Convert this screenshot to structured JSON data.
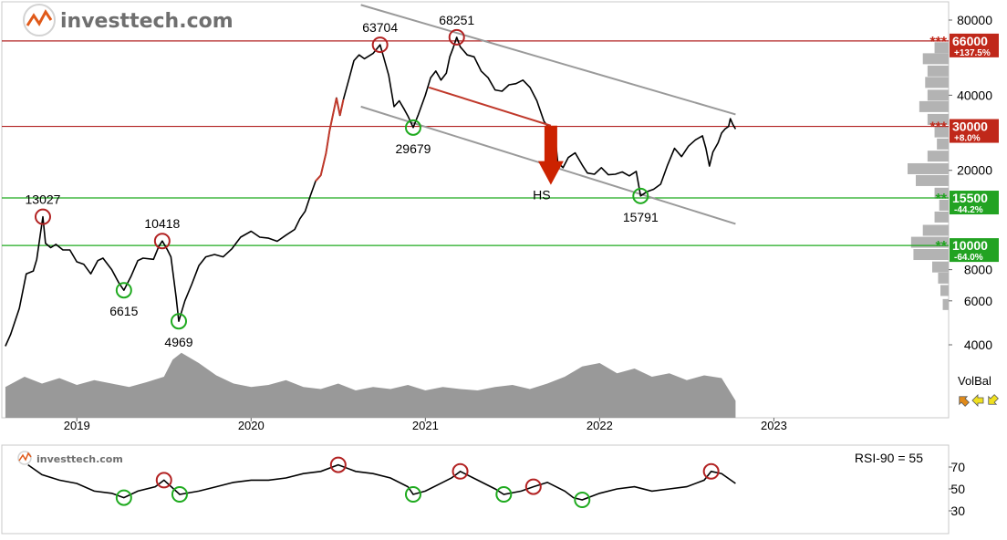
{
  "brand": {
    "name": "investtech.com",
    "small_name": "investtech.com"
  },
  "colors": {
    "price_line": "#000000",
    "breakout_red": "#c0392b",
    "resistance_red": "#b22222",
    "support_green": "#1faa1f",
    "channel_gray": "#9a9a9a",
    "volume_gray": "#999999",
    "histogram_gray": "#b3b3b3",
    "label_red_bg": "#c0281a",
    "label_green_bg": "#22a322",
    "arrow_red": "#cc2200"
  },
  "chart_data": [
    {
      "type": "line",
      "y_scale": "log",
      "ylim": [
        4000,
        90000
      ],
      "y_ticks": [
        {
          "value": 80000,
          "label": "80000"
        },
        {
          "value": 40000,
          "label": "40000"
        },
        {
          "value": 20000,
          "label": "20000"
        },
        {
          "value": 8000,
          "label": "8000"
        },
        {
          "value": 6000,
          "label": "6000"
        },
        {
          "value": 4000,
          "label": "4000"
        }
      ],
      "x_labels": [
        {
          "x": 2019.0,
          "label": "2019"
        },
        {
          "x": 2020.0,
          "label": "2020"
        },
        {
          "x": 2021.0,
          "label": "2021"
        },
        {
          "x": 2022.0,
          "label": "2022"
        },
        {
          "x": 2023.0,
          "label": "2023"
        }
      ],
      "xlim": [
        2018.58,
        2023.72
      ],
      "series": [
        {
          "points": [
            [
              2018.59,
              3950
            ],
            [
              2018.62,
              4400
            ],
            [
              2018.67,
              5600
            ],
            [
              2018.71,
              7700
            ],
            [
              2018.75,
              7900
            ],
            [
              2018.77,
              8800
            ],
            [
              2018.79,
              11000
            ],
            [
              2018.805,
              13027
            ],
            [
              2018.82,
              10200
            ],
            [
              2018.85,
              9800
            ],
            [
              2018.88,
              10100
            ],
            [
              2018.92,
              9600
            ],
            [
              2018.96,
              9600
            ],
            [
              2019.0,
              8600
            ],
            [
              2019.04,
              8400
            ],
            [
              2019.08,
              7700
            ],
            [
              2019.12,
              8700
            ],
            [
              2019.15,
              8900
            ],
            [
              2019.2,
              8000
            ],
            [
              2019.24,
              7100
            ],
            [
              2019.27,
              6615
            ],
            [
              2019.31,
              7500
            ],
            [
              2019.35,
              8700
            ],
            [
              2019.38,
              8900
            ],
            [
              2019.44,
              8800
            ],
            [
              2019.47,
              9900
            ],
            [
              2019.49,
              10418
            ],
            [
              2019.52,
              9600
            ],
            [
              2019.54,
              9000
            ],
            [
              2019.57,
              6200
            ],
            [
              2019.585,
              4969
            ],
            [
              2019.62,
              6000
            ],
            [
              2019.66,
              7000
            ],
            [
              2019.7,
              8300
            ],
            [
              2019.74,
              9000
            ],
            [
              2019.79,
              9200
            ],
            [
              2019.84,
              9000
            ],
            [
              2019.89,
              9700
            ],
            [
              2019.94,
              10800
            ],
            [
              2020.0,
              11400
            ],
            [
              2020.05,
              10800
            ],
            [
              2020.1,
              10700
            ],
            [
              2020.15,
              10400
            ],
            [
              2020.2,
              11000
            ],
            [
              2020.25,
              11600
            ],
            [
              2020.28,
              12800
            ],
            [
              2020.31,
              13700
            ],
            [
              2020.34,
              15800
            ],
            [
              2020.37,
              18100
            ],
            [
              2020.4,
              19100
            ],
            [
              2020.43,
              23400
            ],
            [
              2020.45,
              28800
            ],
            [
              2020.47,
              33500
            ],
            [
              2020.49,
              39000
            ],
            [
              2020.51,
              33200
            ],
            [
              2020.53,
              38500
            ],
            [
              2020.56,
              46000
            ],
            [
              2020.59,
              55000
            ],
            [
              2020.62,
              58000
            ],
            [
              2020.65,
              56000
            ],
            [
              2020.7,
              58800
            ],
            [
              2020.74,
              63704
            ],
            [
              2020.76,
              57000
            ],
            [
              2020.79,
              48000
            ],
            [
              2020.82,
              36000
            ],
            [
              2020.85,
              38000
            ],
            [
              2020.88,
              35000
            ],
            [
              2020.9,
              33000
            ],
            [
              2020.93,
              29679
            ],
            [
              2020.96,
              33500
            ],
            [
              2021.0,
              40000
            ],
            [
              2021.03,
              47000
            ],
            [
              2021.06,
              50000
            ],
            [
              2021.09,
              46000
            ],
            [
              2021.12,
              49000
            ],
            [
              2021.14,
              57000
            ],
            [
              2021.16,
              62000
            ],
            [
              2021.18,
              68251
            ],
            [
              2021.2,
              62500
            ],
            [
              2021.24,
              58000
            ],
            [
              2021.28,
              57000
            ],
            [
              2021.32,
              50000
            ],
            [
              2021.36,
              47000
            ],
            [
              2021.4,
              42000
            ],
            [
              2021.44,
              41500
            ],
            [
              2021.48,
              44000
            ],
            [
              2021.52,
              44500
            ],
            [
              2021.56,
              46000
            ],
            [
              2021.6,
              43000
            ],
            [
              2021.64,
              38000
            ],
            [
              2021.68,
              31500
            ],
            [
              2021.71,
              29500
            ],
            [
              2021.74,
              29500
            ],
            [
              2021.76,
              21500
            ],
            [
              2021.79,
              20500
            ],
            [
              2021.82,
              22500
            ],
            [
              2021.86,
              23500
            ],
            [
              2021.9,
              21000
            ],
            [
              2021.93,
              19500
            ],
            [
              2021.97,
              19300
            ],
            [
              2022.01,
              20500
            ],
            [
              2022.05,
              19200
            ],
            [
              2022.09,
              19300
            ],
            [
              2022.13,
              19700
            ],
            [
              2022.17,
              19000
            ],
            [
              2022.21,
              19800
            ],
            [
              2022.235,
              15791
            ],
            [
              2022.27,
              16400
            ],
            [
              2022.31,
              16800
            ],
            [
              2022.35,
              17600
            ],
            [
              2022.39,
              21000
            ],
            [
              2022.43,
              24500
            ],
            [
              2022.47,
              22700
            ],
            [
              2022.51,
              25000
            ],
            [
              2022.55,
              26500
            ],
            [
              2022.59,
              27500
            ],
            [
              2022.61,
              24500
            ],
            [
              2022.63,
              20800
            ],
            [
              2022.65,
              23700
            ],
            [
              2022.68,
              25800
            ],
            [
              2022.7,
              28200
            ],
            [
              2022.72,
              29300
            ],
            [
              2022.74,
              30000
            ],
            [
              2022.75,
              32200
            ],
            [
              2022.765,
              30500
            ],
            [
              2022.78,
              29300
            ]
          ]
        }
      ],
      "red_segment_range": [
        2020.37,
        2020.53
      ],
      "annotations": [
        {
          "x": 2018.805,
          "y": 13027,
          "label": "13027",
          "kind": "top"
        },
        {
          "x": 2019.49,
          "y": 10418,
          "label": "10418",
          "kind": "top"
        },
        {
          "x": 2019.27,
          "y": 6615,
          "label": "6615",
          "kind": "bottom"
        },
        {
          "x": 2019.585,
          "y": 4969,
          "label": "4969",
          "kind": "bottom"
        },
        {
          "x": 2020.74,
          "y": 63704,
          "label": "63704",
          "kind": "top"
        },
        {
          "x": 2021.18,
          "y": 68251,
          "label": "68251",
          "kind": "top"
        },
        {
          "x": 2020.93,
          "y": 29679,
          "label": "29679",
          "kind": "bottom"
        },
        {
          "x": 2022.235,
          "y": 15791,
          "label": "15791",
          "kind": "bottom"
        }
      ],
      "levels": [
        {
          "value": 66000,
          "label": "66000",
          "change": "+137.5%",
          "kind": "resistance",
          "stars": "***"
        },
        {
          "value": 30000,
          "label": "30000",
          "change": "+8.0%",
          "kind": "resistance",
          "stars": "***"
        },
        {
          "value": 15500,
          "label": "15500",
          "change": "-44.2%",
          "kind": "support",
          "stars": "**"
        },
        {
          "value": 10000,
          "label": "10000",
          "change": "-64.0%",
          "kind": "support",
          "stars": "**"
        }
      ],
      "channel": {
        "upper": [
          [
            2020.63,
            92000
          ],
          [
            2022.78,
            33500
          ]
        ],
        "lower": [
          [
            2020.63,
            36000
          ],
          [
            2022.78,
            12200
          ]
        ]
      },
      "pattern": {
        "label": "HS",
        "neckline": [
          [
            2021.02,
            43000
          ],
          [
            2021.72,
            30200
          ]
        ],
        "arrow_x": 2021.72,
        "arrow_from": 30200,
        "arrow_to": 17500
      },
      "volume_profile": {
        "bins": [
          {
            "value": 5800,
            "weight": 0.05
          },
          {
            "value": 6600,
            "weight": 0.07
          },
          {
            "value": 7400,
            "weight": 0.09
          },
          {
            "value": 8200,
            "weight": 0.14
          },
          {
            "value": 9200,
            "weight": 0.3
          },
          {
            "value": 10300,
            "weight": 0.32
          },
          {
            "value": 11500,
            "weight": 0.22
          },
          {
            "value": 13000,
            "weight": 0.12
          },
          {
            "value": 14500,
            "weight": 0.08
          },
          {
            "value": 16200,
            "weight": 0.12
          },
          {
            "value": 18200,
            "weight": 0.28
          },
          {
            "value": 20300,
            "weight": 0.35
          },
          {
            "value": 22800,
            "weight": 0.18
          },
          {
            "value": 25500,
            "weight": 0.1
          },
          {
            "value": 28500,
            "weight": 0.12
          },
          {
            "value": 32000,
            "weight": 0.18
          },
          {
            "value": 36000,
            "weight": 0.25
          },
          {
            "value": 40000,
            "weight": 0.18
          },
          {
            "value": 45000,
            "weight": 0.2
          },
          {
            "value": 50000,
            "weight": 0.18
          },
          {
            "value": 56000,
            "weight": 0.22
          },
          {
            "value": 62000,
            "weight": 0.12
          }
        ]
      }
    },
    {
      "type": "area",
      "name": "VolBal",
      "x": [
        2018.59,
        2018.7,
        2018.8,
        2018.9,
        2019.0,
        2019.1,
        2019.2,
        2019.3,
        2019.4,
        2019.5,
        2019.55,
        2019.6,
        2019.7,
        2019.8,
        2019.9,
        2020.0,
        2020.1,
        2020.2,
        2020.3,
        2020.4,
        2020.5,
        2020.6,
        2020.7,
        2020.8,
        2020.9,
        2021.0,
        2021.1,
        2021.2,
        2021.3,
        2021.4,
        2021.5,
        2021.6,
        2021.7,
        2021.8,
        2021.9,
        2022.0,
        2022.1,
        2022.2,
        2022.3,
        2022.4,
        2022.5,
        2022.6,
        2022.7,
        2022.78
      ],
      "values": [
        0.45,
        0.6,
        0.5,
        0.58,
        0.48,
        0.55,
        0.5,
        0.45,
        0.52,
        0.6,
        0.85,
        0.95,
        0.8,
        0.62,
        0.5,
        0.45,
        0.48,
        0.55,
        0.45,
        0.42,
        0.5,
        0.4,
        0.45,
        0.42,
        0.48,
        0.4,
        0.45,
        0.42,
        0.4,
        0.45,
        0.48,
        0.42,
        0.5,
        0.6,
        0.75,
        0.8,
        0.65,
        0.72,
        0.6,
        0.65,
        0.55,
        0.62,
        0.58,
        0.25
      ],
      "legend_label": "VolBal"
    },
    {
      "type": "line",
      "name": "RSI-90",
      "label": "RSI-90 = 55",
      "ylim": [
        20,
        80
      ],
      "y_ticks": [
        70,
        50,
        30
      ],
      "x": [
        2018.72,
        2018.8,
        2018.9,
        2019.0,
        2019.1,
        2019.2,
        2019.27,
        2019.35,
        2019.45,
        2019.5,
        2019.59,
        2019.7,
        2019.8,
        2019.9,
        2020.0,
        2020.1,
        2020.2,
        2020.3,
        2020.4,
        2020.5,
        2020.6,
        2020.7,
        2020.8,
        2020.9,
        2020.93,
        2021.0,
        2021.1,
        2021.15,
        2021.2,
        2021.3,
        2021.4,
        2021.45,
        2021.55,
        2021.62,
        2021.7,
        2021.8,
        2021.85,
        2021.9,
        2022.0,
        2022.1,
        2022.2,
        2022.3,
        2022.4,
        2022.5,
        2022.6,
        2022.64,
        2022.7,
        2022.78
      ],
      "values": [
        72,
        63,
        58,
        55,
        48,
        46,
        42,
        48,
        52,
        58,
        45,
        48,
        52,
        56,
        58,
        58,
        60,
        64,
        66,
        72,
        66,
        64,
        60,
        52,
        45,
        48,
        56,
        60,
        66,
        58,
        50,
        45,
        48,
        52,
        56,
        48,
        42,
        40,
        46,
        50,
        52,
        48,
        50,
        52,
        58,
        66,
        64,
        55
      ],
      "circles": [
        {
          "x": 2019.27,
          "y": 42,
          "kind": "bottom"
        },
        {
          "x": 2019.59,
          "y": 45,
          "kind": "bottom"
        },
        {
          "x": 2019.5,
          "y": 58,
          "kind": "top"
        },
        {
          "x": 2020.5,
          "y": 72,
          "kind": "top"
        },
        {
          "x": 2020.93,
          "y": 45,
          "kind": "bottom"
        },
        {
          "x": 2021.2,
          "y": 66,
          "kind": "top"
        },
        {
          "x": 2021.45,
          "y": 45,
          "kind": "bottom"
        },
        {
          "x": 2021.62,
          "y": 52,
          "kind": "top"
        },
        {
          "x": 2021.9,
          "y": 40,
          "kind": "bottom"
        },
        {
          "x": 2022.64,
          "y": 66,
          "kind": "top"
        }
      ]
    }
  ]
}
